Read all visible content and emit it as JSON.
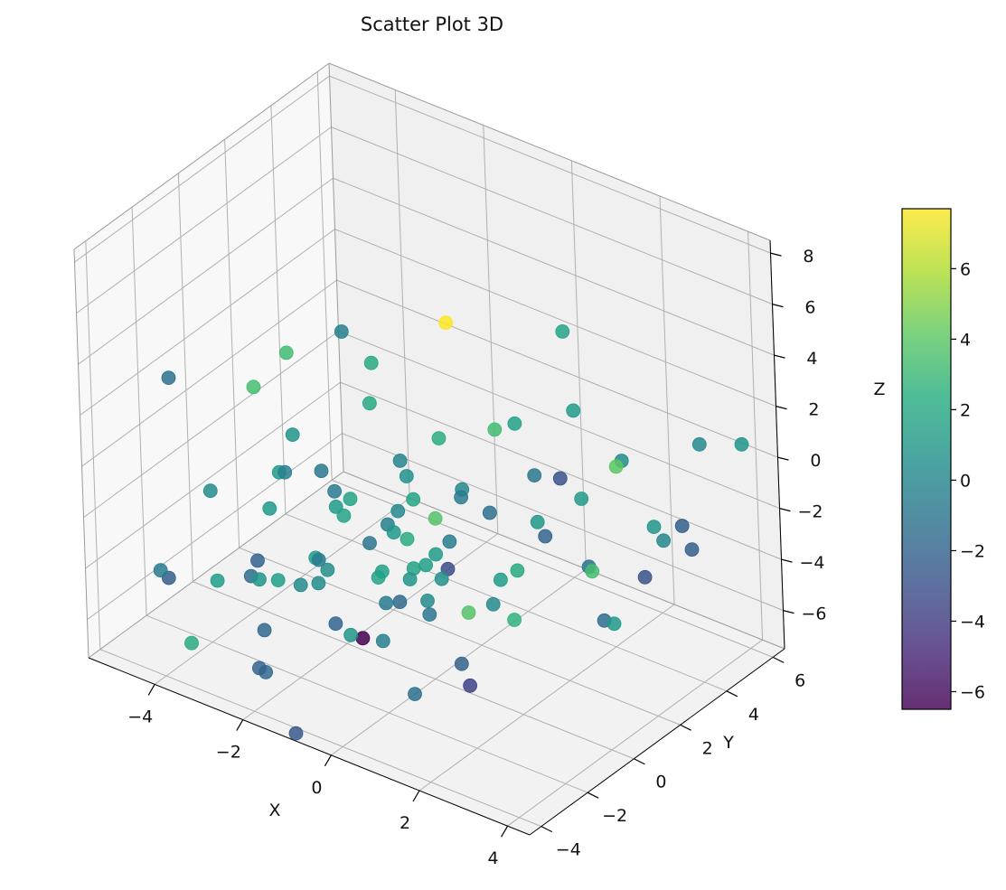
{
  "chart_data": {
    "type": "scatter",
    "projection": "3d",
    "title": "Scatter Plot 3D",
    "xlabel": "X",
    "ylabel": "Y",
    "zlabel": "Z",
    "xlim": [
      -5.5,
      4.5
    ],
    "ylim": [
      -4.5,
      6.5
    ],
    "zlim": [
      -7.5,
      8.5
    ],
    "xticks": [
      -4,
      -2,
      0,
      2,
      4
    ],
    "xtick_labels": [
      "−4",
      "−2",
      "0",
      "2",
      "4"
    ],
    "yticks": [
      -4,
      -2,
      0,
      2,
      4,
      6
    ],
    "ytick_labels": [
      "−4",
      "−2",
      "0",
      "2",
      "4",
      "6"
    ],
    "zticks": [
      -6,
      -4,
      -2,
      0,
      2,
      4,
      6,
      8
    ],
    "ztick_labels": [
      "−6",
      "−4",
      "−2",
      "0",
      "2",
      "4",
      "6",
      "8"
    ],
    "grid": true,
    "colormap": "viridis",
    "colorbar": {
      "min": -6.5,
      "max": 7.7,
      "ticks": [
        -6,
        -4,
        -2,
        0,
        2,
        4,
        6
      ],
      "tick_labels": [
        "−6",
        "−4",
        "−2",
        "0",
        "2",
        "4",
        "6"
      ],
      "position": "right"
    },
    "points": [
      {
        "x": -0.2,
        "y": -3.6,
        "z": 2.1,
        "c": -0.6
      },
      {
        "x": 1.3,
        "y": -3.3,
        "z": -0.5,
        "c": 0.8
      },
      {
        "x": -0.9,
        "y": -4.0,
        "z": 4.1,
        "c": 0.8
      },
      {
        "x": 0.2,
        "y": 0.6,
        "z": 6.2,
        "c": 7.7
      },
      {
        "x": -0.5,
        "y": -2.4,
        "z": 0.8,
        "c": 1.8
      },
      {
        "x": 0.8,
        "y": 1.4,
        "z": 1.9,
        "c": 3.3
      },
      {
        "x": -0.4,
        "y": -1.5,
        "z": 5.6,
        "c": 2.0
      },
      {
        "x": 4.0,
        "y": 0.6,
        "z": 3.2,
        "c": 4.1
      },
      {
        "x": 4.5,
        "y": 5.0,
        "z": 1.5,
        "c": 0.9
      },
      {
        "x": 1.4,
        "y": 3.3,
        "z": 4.9,
        "c": 1.7
      },
      {
        "x": -4.8,
        "y": -2.0,
        "z": 2.3,
        "c": -1.3
      },
      {
        "x": -3.0,
        "y": -0.3,
        "z": 3.4,
        "c": 3.3
      },
      {
        "x": -4.0,
        "y": 0.1,
        "z": 1.1,
        "c": 3.4
      },
      {
        "x": -3.6,
        "y": -2.6,
        "z": -0.9,
        "c": 0.4
      },
      {
        "x": -2.2,
        "y": -2.0,
        "z": 0.4,
        "c": -0.3
      },
      {
        "x": -3.3,
        "y": 2.6,
        "z": 2.1,
        "c": -0.4
      },
      {
        "x": -1.4,
        "y": 0.2,
        "z": 2.2,
        "c": 2.0
      },
      {
        "x": 0.0,
        "y": 0.5,
        "z": 1.6,
        "c": 2.3
      },
      {
        "x": 1.2,
        "y": 4.0,
        "z": 1.2,
        "c": 1.2
      },
      {
        "x": 0.5,
        "y": 2.8,
        "z": 1.0,
        "c": 1.6
      },
      {
        "x": -1.8,
        "y": -1.2,
        "z": 0.2,
        "c": -0.8
      },
      {
        "x": -0.8,
        "y": 0.3,
        "z": 0.3,
        "c": -0.1
      },
      {
        "x": 0.4,
        "y": -0.5,
        "z": -0.6,
        "c": 3.8
      },
      {
        "x": 2.6,
        "y": 3.4,
        "z": 0.6,
        "c": 0.4
      },
      {
        "x": -2.8,
        "y": -1.6,
        "z": -1.7,
        "c": 1.1
      },
      {
        "x": -1.6,
        "y": -1.0,
        "z": -1.2,
        "c": 1.3
      },
      {
        "x": -0.4,
        "y": -0.6,
        "z": -0.8,
        "c": 0.2
      },
      {
        "x": 0.6,
        "y": -0.9,
        "z": -1.6,
        "c": 1.3
      },
      {
        "x": -0.7,
        "y": -0.5,
        "z": -1.6,
        "c": -0.4
      },
      {
        "x": 1.8,
        "y": -0.4,
        "z": -2.1,
        "c": 1.4
      },
      {
        "x": 2.3,
        "y": 2.2,
        "z": -0.3,
        "c": 1.2
      },
      {
        "x": 4.2,
        "y": 3.3,
        "z": -1.7,
        "c": -2.3
      },
      {
        "x": 3.2,
        "y": 5.6,
        "z": 0.2,
        "c": 0.2
      },
      {
        "x": 2.6,
        "y": 2.0,
        "z": -2.8,
        "c": 3.4
      },
      {
        "x": 3.5,
        "y": 1.2,
        "z": -3.7,
        "c": 1.1
      },
      {
        "x": -0.3,
        "y": -1.7,
        "z": -2.6,
        "c": 1.7
      },
      {
        "x": -1.4,
        "y": -2.3,
        "z": -2.2,
        "c": 1.2
      },
      {
        "x": -2.5,
        "y": -1.9,
        "z": -4.1,
        "c": 1.5
      },
      {
        "x": -2.3,
        "y": -3.1,
        "z": -2.4,
        "c": -2.0
      },
      {
        "x": -3.7,
        "y": 0.5,
        "z": -2.3,
        "c": 1.2
      },
      {
        "x": -0.2,
        "y": -1.6,
        "z": -3.6,
        "c": -0.6
      },
      {
        "x": -1.1,
        "y": -2.1,
        "z": -4.7,
        "c": -1.9
      },
      {
        "x": 0.2,
        "y": -0.6,
        "z": -2.5,
        "c": 1.5
      },
      {
        "x": 1.5,
        "y": -0.2,
        "z": -3.4,
        "c": 0.2
      },
      {
        "x": -0.6,
        "y": -2.4,
        "z": -4.6,
        "c": 1.0
      },
      {
        "x": 1.1,
        "y": -2.9,
        "z": -5.4,
        "c": -1.4
      },
      {
        "x": -1.9,
        "y": -1.3,
        "z": -4.2,
        "c": 0.4
      },
      {
        "x": -3.5,
        "y": -1.2,
        "z": -5.1,
        "c": -1.5
      },
      {
        "x": 0.4,
        "y": 1.8,
        "z": -1.9,
        "c": -1.4
      },
      {
        "x": 2.2,
        "y": 2.6,
        "z": -3.3,
        "c": -1.1
      },
      {
        "x": 1.6,
        "y": -1.8,
        "z": -4.6,
        "c": -2.0
      },
      {
        "x": -1.2,
        "y": -0.8,
        "z": -6.2,
        "c": -6.5
      },
      {
        "x": -4.3,
        "y": -3.2,
        "z": -4.4,
        "c": -2.3
      },
      {
        "x": 0.9,
        "y": 3.9,
        "z": -1.6,
        "c": -2.9
      },
      {
        "x": 3.7,
        "y": 2.2,
        "z": -2.4,
        "c": -2.9
      },
      {
        "x": -2.8,
        "y": -2.0,
        "z": -6.2,
        "c": -1.8
      },
      {
        "x": -0.7,
        "y": -0.1,
        "z": -4.9,
        "c": -1.6
      },
      {
        "x": -0.5,
        "y": 1.6,
        "z": -4.6,
        "c": -3.2
      },
      {
        "x": 0.3,
        "y": -0.7,
        "z": -4.3,
        "c": -0.9
      },
      {
        "x": -0.9,
        "y": -0.5,
        "z": -6.3,
        "c": -0.4
      },
      {
        "x": 0.9,
        "y": -0.2,
        "z": -7.0,
        "c": -3.7
      },
      {
        "x": 2.4,
        "y": 2.8,
        "z": -5.4,
        "c": -1.5
      },
      {
        "x": 1.0,
        "y": 3.0,
        "z": -3.2,
        "c": -1.9
      },
      {
        "x": -2.0,
        "y": -3.6,
        "z": -2.6,
        "c": 0.9
      },
      {
        "x": -1.0,
        "y": -2.9,
        "z": -1.6,
        "c": -0.6
      },
      {
        "x": -1.6,
        "y": -2.6,
        "z": -3.2,
        "c": 0.3
      },
      {
        "x": -0.1,
        "y": -1.9,
        "z": -2.1,
        "c": 1.6
      },
      {
        "x": -0.8,
        "y": -1.1,
        "z": -2.0,
        "c": -0.9
      },
      {
        "x": 0.3,
        "y": -1.3,
        "z": -2.1,
        "c": 1.7
      },
      {
        "x": 1.6,
        "y": 1.6,
        "z": -1.3,
        "c": 1.0
      },
      {
        "x": 3.4,
        "y": 3.2,
        "z": -1.3,
        "c": 0.8
      },
      {
        "x": 3.5,
        "y": 3.4,
        "z": -1.9,
        "c": 0.1
      },
      {
        "x": 1.2,
        "y": -0.7,
        "z": -3.6,
        "c": 3.8
      },
      {
        "x": 1.7,
        "y": 0.3,
        "z": -4.2,
        "c": 2.7
      },
      {
        "x": -2.8,
        "y": -3.9,
        "z": -3.0,
        "c": 1.4
      },
      {
        "x": -4.1,
        "y": -3.9,
        "z": -3.5,
        "c": -0.5
      },
      {
        "x": -3.5,
        "y": -3.8,
        "z": -6.0,
        "c": 2.1
      },
      {
        "x": 0.1,
        "y": -0.4,
        "z": -4.1,
        "c": 0.3
      },
      {
        "x": 1.7,
        "y": 0.5,
        "z": -2.4,
        "c": 2.0
      },
      {
        "x": -0.4,
        "y": -0.8,
        "z": -1.5,
        "c": 1.1
      },
      {
        "x": 0.6,
        "y": -0.3,
        "z": -1.5,
        "c": -0.5
      },
      {
        "x": -0.5,
        "y": 0.0,
        "z": 0.1,
        "c": 0.6
      },
      {
        "x": 0.3,
        "y": 0.8,
        "z": -0.7,
        "c": -0.6
      },
      {
        "x": -0.2,
        "y": -0.3,
        "z": -0.4,
        "c": 1.8
      },
      {
        "x": -1.3,
        "y": -2.0,
        "z": -2.8,
        "c": 0.5
      },
      {
        "x": -0.7,
        "y": 0.3,
        "z": -2.7,
        "c": 2.3
      },
      {
        "x": 0.5,
        "y": -0.5,
        "z": -2.9,
        "c": 0.6
      },
      {
        "x": 0.0,
        "y": 1.4,
        "z": -1.0,
        "c": 0.1
      },
      {
        "x": -1.1,
        "y": -1.6,
        "z": -0.8,
        "c": 1.7
      },
      {
        "x": -2.2,
        "y": -3.1,
        "z": -6.7,
        "c": -1.6
      },
      {
        "x": 0.2,
        "y": 4.1,
        "z": -2.1,
        "c": -1.0
      },
      {
        "x": -1.8,
        "y": -4.1,
        "z": -5.6,
        "c": -2.0
      },
      {
        "x": 2.9,
        "y": 5.3,
        "z": -3.0,
        "c": -2.3
      },
      {
        "x": -0.9,
        "y": -4.3,
        "z": -7.4,
        "c": -2.5
      }
    ]
  }
}
